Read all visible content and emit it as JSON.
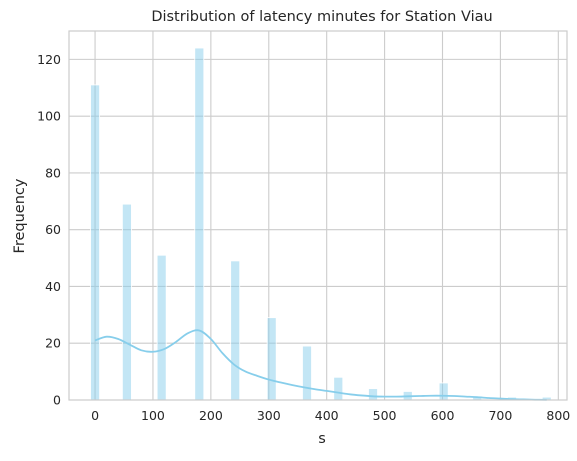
{
  "chart_data": {
    "type": "bar",
    "title": "Distribution of latency minutes for Station Viau",
    "xlabel": "s",
    "ylabel": "Frequency",
    "xlim": [
      -45,
      815
    ],
    "ylim": [
      0,
      130
    ],
    "xticks": [
      0,
      100,
      200,
      300,
      400,
      500,
      600,
      700,
      800
    ],
    "yticks": [
      0,
      20,
      40,
      60,
      80,
      100,
      120
    ],
    "grid": true,
    "colors": {
      "bar": "#87ceeb",
      "bar_edge": "#ffffff",
      "kde": "#87ceeb",
      "grid": "#cccccc",
      "spine": "#cccccc"
    },
    "bar_width": 15.6,
    "bars": [
      {
        "x": 0,
        "count": 111
      },
      {
        "x": 55,
        "count": 69
      },
      {
        "x": 115,
        "count": 51
      },
      {
        "x": 180,
        "count": 124
      },
      {
        "x": 242,
        "count": 49
      },
      {
        "x": 305,
        "count": 29
      },
      {
        "x": 366,
        "count": 19
      },
      {
        "x": 420,
        "count": 8
      },
      {
        "x": 480,
        "count": 4
      },
      {
        "x": 540,
        "count": 3
      },
      {
        "x": 602,
        "count": 6
      },
      {
        "x": 660,
        "count": 1
      },
      {
        "x": 720,
        "count": 1
      },
      {
        "x": 780,
        "count": 1
      }
    ],
    "kde": {
      "x": [
        0,
        20,
        40,
        60,
        80,
        100,
        120,
        140,
        160,
        180,
        200,
        220,
        240,
        260,
        280,
        300,
        320,
        340,
        360,
        380,
        400,
        420,
        440,
        460,
        480,
        500,
        520,
        540,
        560,
        580,
        600,
        620,
        640,
        660,
        680,
        700,
        720,
        740,
        760,
        780
      ],
      "y": [
        21,
        22.3,
        21.5,
        19.5,
        17.5,
        17,
        18,
        20.5,
        23.5,
        24.5,
        21.5,
        16.5,
        12.5,
        10,
        8.5,
        7.2,
        6.2,
        5.3,
        4.5,
        3.8,
        3.2,
        2.6,
        2.0,
        1.6,
        1.3,
        1.2,
        1.2,
        1.3,
        1.4,
        1.5,
        1.5,
        1.4,
        1.2,
        1.0,
        0.7,
        0.5,
        0.3,
        0.2,
        0.1,
        0.05
      ]
    }
  }
}
